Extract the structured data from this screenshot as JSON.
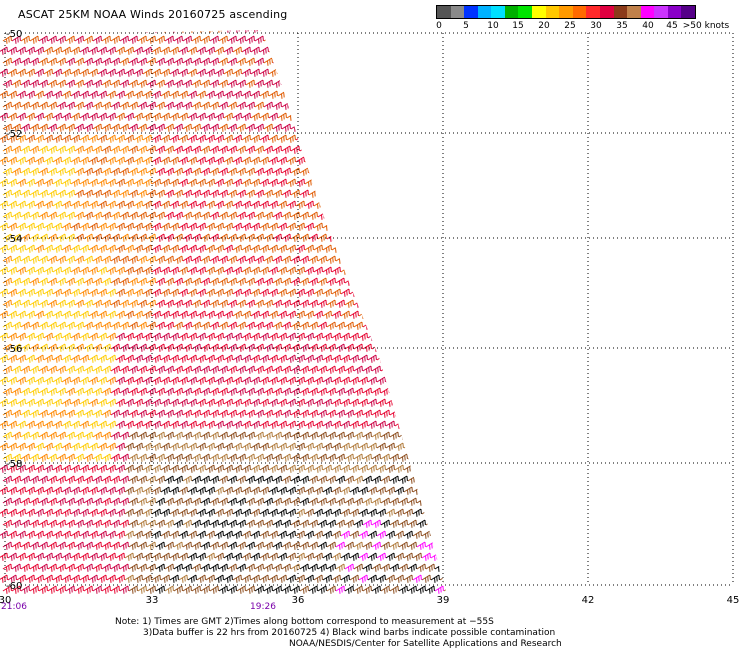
{
  "title": "ASCAT 25KM NOAA Winds 20160725 ascending",
  "legend": {
    "colors": [
      "#555555",
      "#8a8a8a",
      "#0033ff",
      "#00b2ff",
      "#00e0ff",
      "#00b000",
      "#00e400",
      "#ffff00",
      "#ffc800",
      "#ff9a00",
      "#ff6a00",
      "#ff2a2a",
      "#e00040",
      "#8b3a1a",
      "#c0804a",
      "#ff00ff",
      "#cc33ff",
      "#8a00c8",
      "#550088"
    ],
    "labels": [
      "0",
      "5",
      "10",
      "15",
      "20",
      "25",
      "30",
      "35",
      "40",
      "45",
      ">50 knots"
    ],
    "unit": "knots"
  },
  "map": {
    "lat_labels": [
      "-50",
      "-52",
      "-54",
      "-56",
      "-58",
      "-60"
    ],
    "lon_labels": [
      "30",
      "33",
      "36",
      "39",
      "42",
      "45"
    ],
    "time_labels": [
      "21:06",
      "19:26"
    ],
    "swath_colors": {
      "yellow": "#ffcc00",
      "orange": "#ff8800",
      "darkorange": "#e05a00",
      "red": "#e6002e",
      "crimson": "#cc0044",
      "brown": "#8b4a1a",
      "tan": "#b07a3a",
      "magenta": "#ff00ff",
      "black": "#000000"
    }
  },
  "note": {
    "line1": "Note: 1) Times are GMT 2)Times along bottom correspond to measurement at −55S",
    "line2": "3)Data buffer is 22 hrs from 20160725 4) Black wind barbs indicate possible contamination",
    "line3": "NOAA/NESDIS/Center for Satellite Applications and Research"
  }
}
